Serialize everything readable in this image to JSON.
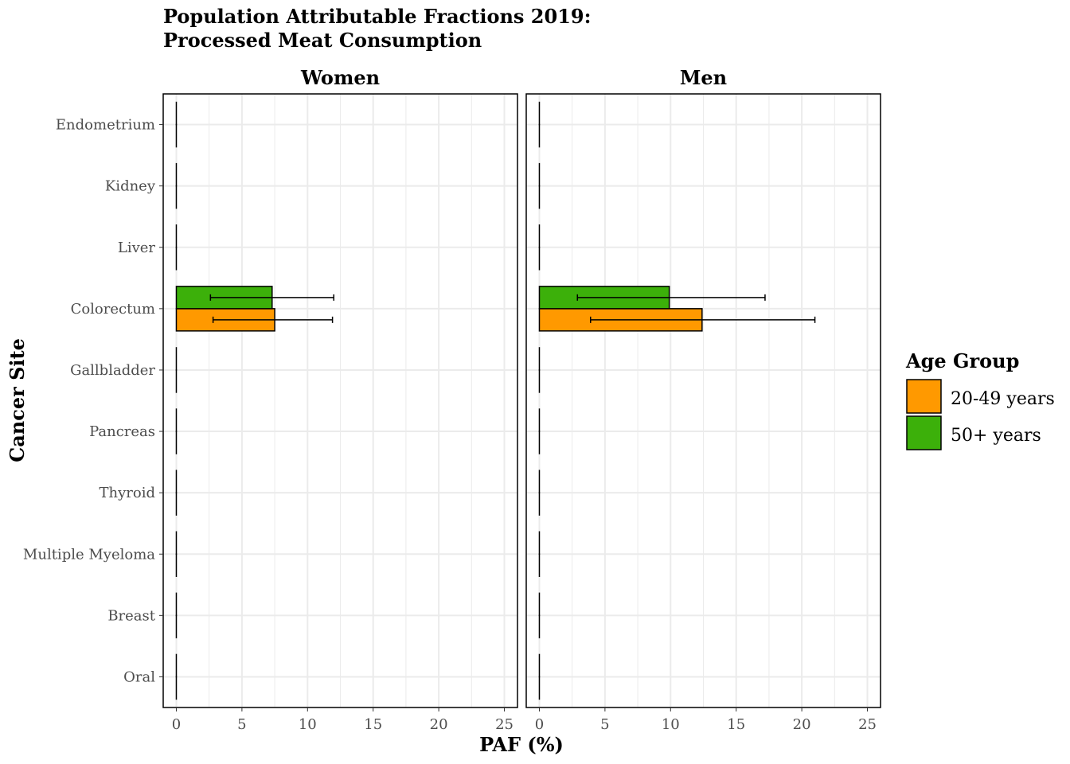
{
  "chart_data": {
    "type": "bar",
    "orientation": "horizontal",
    "title_lines": [
      "Population Attributable Fractions 2019:",
      "Processed Meat Consumption"
    ],
    "xlabel": "PAF (%)",
    "ylabel": "Cancer Site",
    "xlim": [
      -1,
      26
    ],
    "xticks": [
      0,
      5,
      10,
      15,
      20,
      25
    ],
    "grid": true,
    "legend": {
      "title": "Age Group",
      "placement": "right",
      "entries": [
        {
          "label": "20-49 years",
          "color": "#FF9900"
        },
        {
          "label": "50+ years",
          "color": "#3CB00A"
        }
      ]
    },
    "categories": [
      "Endometrium",
      "Kidney",
      "Liver",
      "Colorectum",
      "Gallbladder",
      "Pancreas",
      "Thyroid",
      "Multiple Myeloma",
      "Breast",
      "Oral"
    ],
    "panels": [
      {
        "name": "Women",
        "series": [
          {
            "name": "20-49 years",
            "values": [
              0,
              0,
              0,
              7.5,
              0,
              0,
              0,
              0,
              0,
              0
            ],
            "lower": [
              0,
              0,
              0,
              2.8,
              0,
              0,
              0,
              0,
              0,
              0
            ],
            "upper": [
              0,
              0,
              0,
              11.9,
              0,
              0,
              0,
              0,
              0,
              0
            ]
          },
          {
            "name": "50+ years",
            "values": [
              0,
              0,
              0,
              7.3,
              0,
              0,
              0,
              0,
              0,
              0
            ],
            "lower": [
              0,
              0,
              0,
              2.6,
              0,
              0,
              0,
              0,
              0,
              0
            ],
            "upper": [
              0,
              0,
              0,
              12.0,
              0,
              0,
              0,
              0,
              0,
              0
            ]
          }
        ]
      },
      {
        "name": "Men",
        "series": [
          {
            "name": "20-49 years",
            "values": [
              0,
              0,
              0,
              12.4,
              0,
              0,
              0,
              0,
              0,
              0
            ],
            "lower": [
              0,
              0,
              0,
              3.9,
              0,
              0,
              0,
              0,
              0,
              0
            ],
            "upper": [
              0,
              0,
              0,
              21.0,
              0,
              0,
              0,
              0,
              0,
              0
            ]
          },
          {
            "name": "50+ years",
            "values": [
              0,
              0,
              0,
              9.9,
              0,
              0,
              0,
              0,
              0,
              0
            ],
            "lower": [
              0,
              0,
              0,
              2.9,
              0,
              0,
              0,
              0,
              0,
              0
            ],
            "upper": [
              0,
              0,
              0,
              17.2,
              0,
              0,
              0,
              0,
              0,
              0
            ]
          }
        ]
      }
    ]
  }
}
